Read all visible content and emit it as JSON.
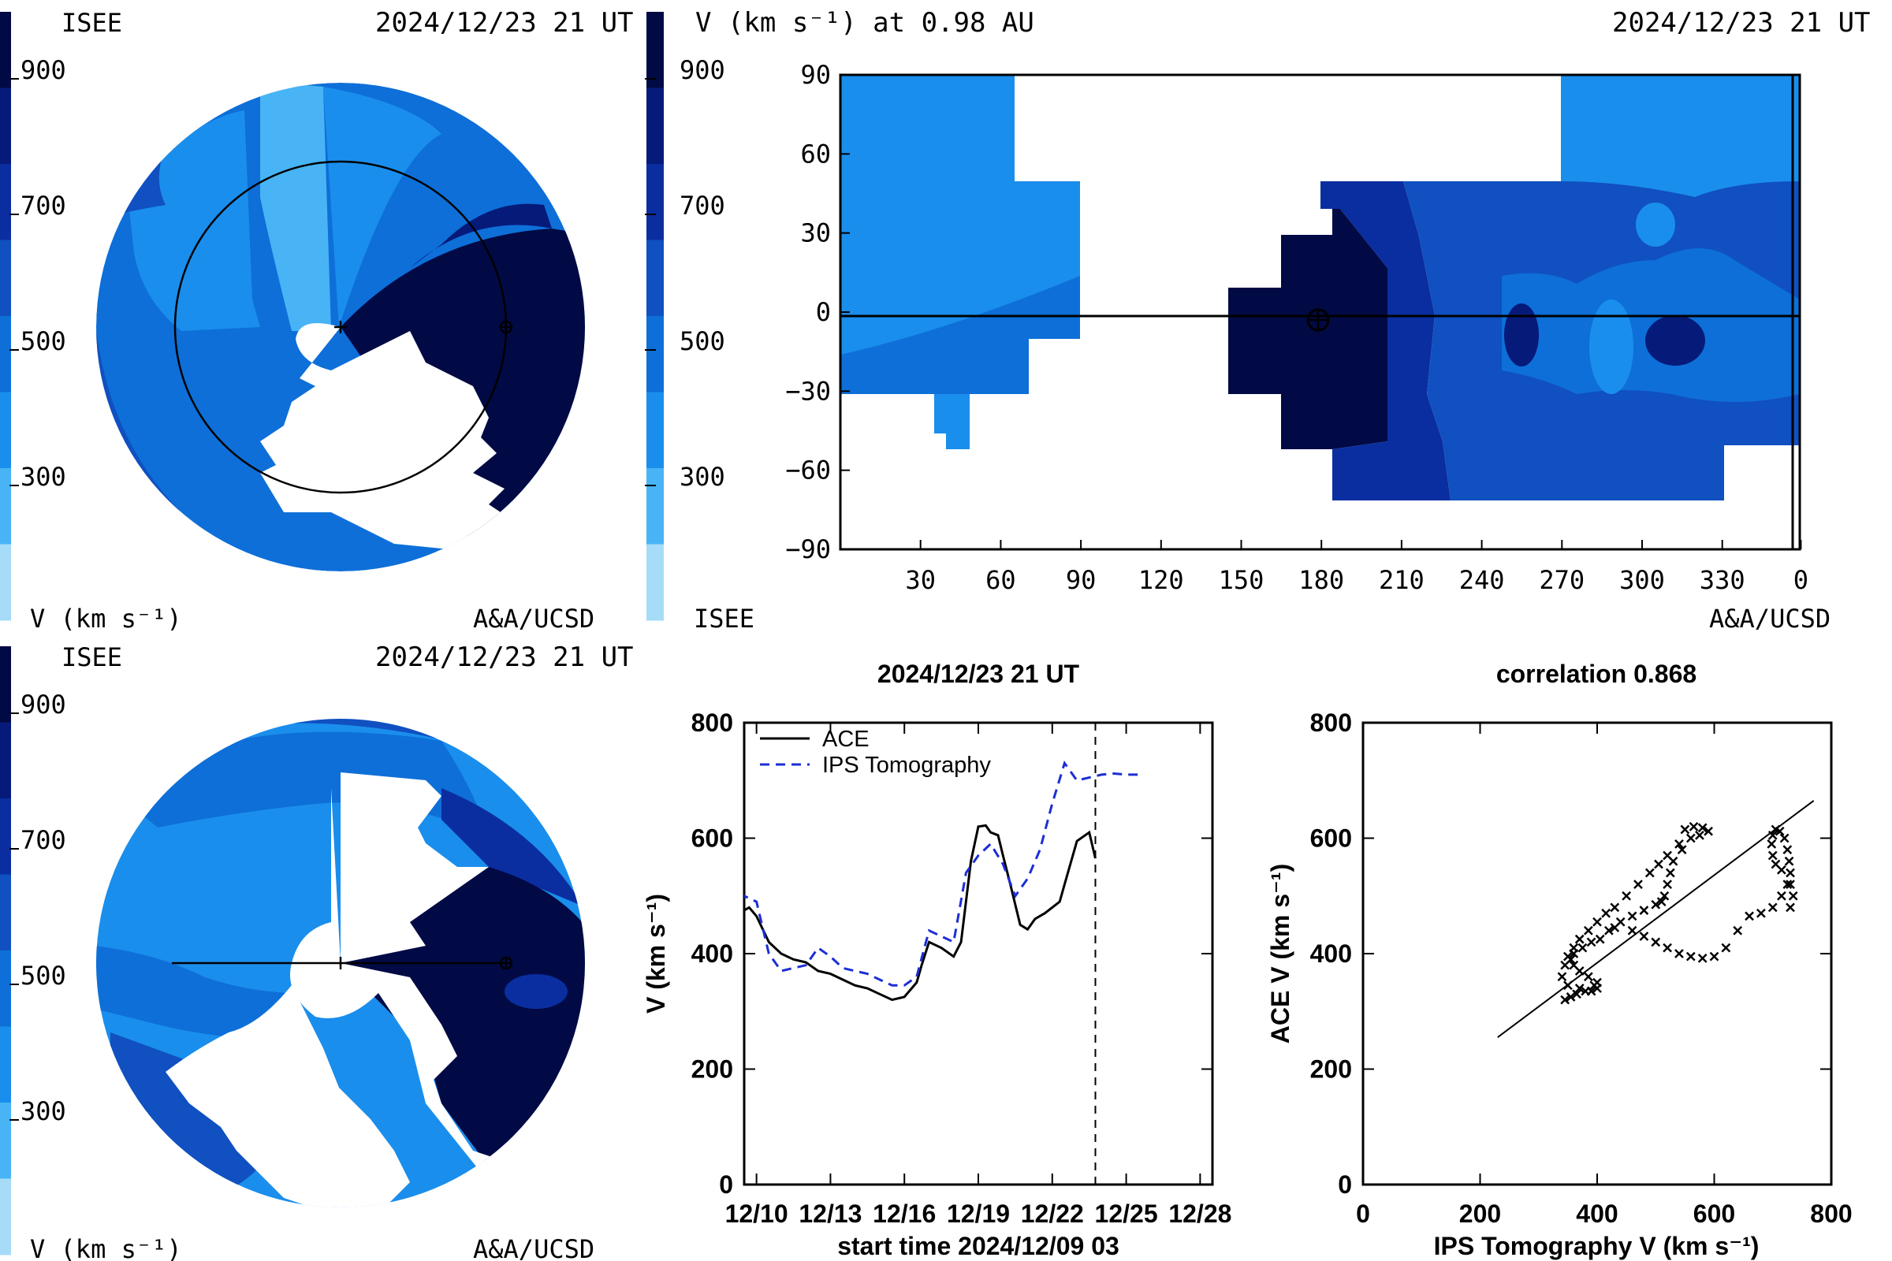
{
  "colors": {
    "scale": [
      "#a6dcf8",
      "#48b4f5",
      "#1a8eec",
      "#0e6fd8",
      "#1050c0",
      "#0a2ea0",
      "#061a7a",
      "#020a45"
    ],
    "ink": "#000000",
    "ips_line": "#1c2ed6"
  },
  "colorbar": {
    "title": "V (km s⁻¹)",
    "ticks": [
      "900",
      "700",
      "500",
      "300"
    ]
  },
  "panel_top_left": {
    "org": "ISEE",
    "time": "2024/12/23 21 UT",
    "units_label": "V (km s⁻¹)",
    "credit": "A&A/UCSD"
  },
  "panel_top_right": {
    "title": "V (km s⁻¹) at 0.98 AU",
    "time": "2024/12/23 21 UT",
    "org": "ISEE",
    "credit": "A&A/UCSD"
  },
  "panel_bottom_left": {
    "org": "ISEE",
    "time": "2024/12/23 21 UT",
    "units_label": "V (km s⁻¹)",
    "credit": "A&A/UCSD"
  },
  "chart_data": [
    {
      "type": "heatmap",
      "title": "V (km s⁻¹) at 0.98 AU",
      "x_ticks": [
        "30",
        "60",
        "90",
        "120",
        "150",
        "180",
        "210",
        "240",
        "270",
        "300",
        "330",
        "0"
      ],
      "y_ticks": [
        "90",
        "60",
        "30",
        "0",
        "−30",
        "−60",
        "−90"
      ],
      "xlim": [
        0,
        360
      ],
      "ylim": [
        -90,
        90
      ]
    },
    {
      "type": "line",
      "title": "2024/12/23 21 UT",
      "xlabel": "start time 2024/12/09 03",
      "ylabel": "V (km s⁻¹)",
      "x_ticks": [
        "12/10",
        "12/13",
        "12/16",
        "12/19",
        "12/22",
        "12/25",
        "12/28"
      ],
      "y_ticks": [
        "800",
        "600",
        "400",
        "200",
        "0"
      ],
      "ylim": [
        0,
        800
      ],
      "xlim": [
        0.5,
        19.5
      ],
      "vline_x": 14.75,
      "series": [
        {
          "name": "ACE",
          "style": "solid",
          "x": [
            0,
            0.3,
            0.7,
            1.0,
            1.5,
            2.0,
            2.5,
            3.0,
            3.5,
            4.0,
            4.5,
            5.0,
            5.5,
            6.0,
            6.5,
            7.0,
            7.5,
            7.7,
            8.0,
            8.5,
            9.0,
            9.3,
            9.7,
            10.0,
            10.3,
            10.5,
            10.8,
            11.0,
            11.3,
            11.7,
            12.0,
            12.3,
            12.7,
            13.0,
            13.3,
            13.5,
            14.0,
            14.5,
            14.75
          ],
          "y": [
            440,
            470,
            480,
            465,
            420,
            400,
            390,
            385,
            370,
            365,
            355,
            345,
            340,
            330,
            320,
            325,
            350,
            380,
            420,
            410,
            395,
            420,
            560,
            620,
            622,
            610,
            605,
            570,
            520,
            450,
            442,
            460,
            470,
            480,
            490,
            520,
            595,
            610,
            565
          ]
        },
        {
          "name": "IPS Tomography",
          "style": "dashed",
          "x": [
            0,
            0.5,
            1.0,
            1.5,
            2.0,
            2.5,
            3.0,
            3.5,
            4.0,
            4.5,
            5.0,
            5.5,
            6.0,
            6.5,
            7.0,
            7.5,
            8.0,
            8.5,
            9.0,
            9.5,
            10.0,
            10.5,
            11.0,
            11.5,
            12.0,
            12.5,
            13.0,
            13.5,
            14.0,
            14.5,
            15.0,
            15.5,
            16.0,
            16.5
          ],
          "y": [
            470,
            500,
            490,
            400,
            370,
            375,
            380,
            410,
            395,
            375,
            370,
            365,
            355,
            345,
            345,
            360,
            440,
            430,
            420,
            540,
            570,
            590,
            555,
            500,
            530,
            580,
            660,
            730,
            700,
            705,
            710,
            712,
            710,
            710
          ]
        }
      ]
    },
    {
      "type": "scatter",
      "title": "correlation 0.868",
      "xlabel": "IPS Tomography V (km s⁻¹)",
      "ylabel": "ACE V (km s⁻¹)",
      "x_ticks": [
        "0",
        "200",
        "400",
        "600",
        "800"
      ],
      "y_ticks": [
        "800",
        "600",
        "400",
        "200",
        "0"
      ],
      "xlim": [
        0,
        800
      ],
      "ylim": [
        0,
        800
      ],
      "fit_line": {
        "x": [
          230,
          770
        ],
        "y": [
          255,
          665
        ]
      },
      "points": [
        [
          345,
          320
        ],
        [
          355,
          325
        ],
        [
          365,
          330
        ],
        [
          380,
          335
        ],
        [
          395,
          345
        ],
        [
          400,
          350
        ],
        [
          385,
          360
        ],
        [
          370,
          370
        ],
        [
          360,
          380
        ],
        [
          355,
          390
        ],
        [
          360,
          400
        ],
        [
          375,
          410
        ],
        [
          390,
          420
        ],
        [
          405,
          425
        ],
        [
          420,
          440
        ],
        [
          440,
          455
        ],
        [
          460,
          465
        ],
        [
          480,
          475
        ],
        [
          500,
          485
        ],
        [
          510,
          490
        ],
        [
          515,
          500
        ],
        [
          520,
          520
        ],
        [
          525,
          540
        ],
        [
          530,
          560
        ],
        [
          540,
          590
        ],
        [
          550,
          615
        ],
        [
          565,
          620
        ],
        [
          580,
          618
        ],
        [
          590,
          612
        ],
        [
          575,
          605
        ],
        [
          560,
          600
        ],
        [
          545,
          580
        ],
        [
          520,
          570
        ],
        [
          505,
          555
        ],
        [
          490,
          540
        ],
        [
          470,
          520
        ],
        [
          450,
          500
        ],
        [
          430,
          480
        ],
        [
          415,
          470
        ],
        [
          400,
          455
        ],
        [
          385,
          440
        ],
        [
          370,
          425
        ],
        [
          360,
          410
        ],
        [
          350,
          395
        ],
        [
          345,
          380
        ],
        [
          340,
          360
        ],
        [
          350,
          345
        ],
        [
          370,
          340
        ],
        [
          390,
          335
        ],
        [
          400,
          340
        ],
        [
          430,
          445
        ],
        [
          460,
          440
        ],
        [
          480,
          430
        ],
        [
          500,
          420
        ],
        [
          520,
          410
        ],
        [
          540,
          400
        ],
        [
          560,
          395
        ],
        [
          580,
          392
        ],
        [
          600,
          395
        ],
        [
          620,
          410
        ],
        [
          640,
          440
        ],
        [
          660,
          465
        ],
        [
          680,
          470
        ],
        [
          700,
          480
        ],
        [
          715,
          500
        ],
        [
          725,
          520
        ],
        [
          730,
          540
        ],
        [
          728,
          560
        ],
        [
          725,
          580
        ],
        [
          720,
          600
        ],
        [
          712,
          612
        ],
        [
          705,
          615
        ],
        [
          700,
          605
        ],
        [
          698,
          590
        ],
        [
          700,
          570
        ],
        [
          705,
          555
        ],
        [
          715,
          545
        ],
        [
          730,
          520
        ],
        [
          735,
          500
        ],
        [
          730,
          480
        ]
      ]
    }
  ]
}
